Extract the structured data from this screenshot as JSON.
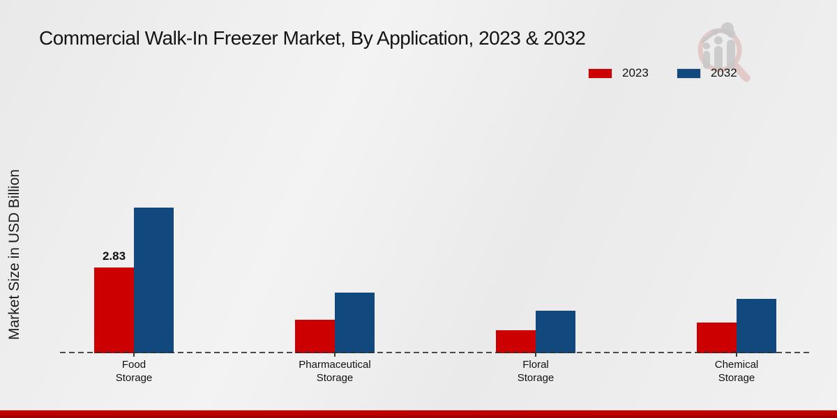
{
  "header": {
    "title": "Commercial Walk-In Freezer Market, By Application, 2023 & 2032"
  },
  "y_axis": {
    "label": "Market Size in USD Billion"
  },
  "legend": {
    "position": "top-right"
  },
  "watermark": {
    "icon": "market-research-magnifier-logo"
  },
  "footer": {
    "band_color": "#b80000"
  },
  "chart_data": {
    "type": "bar",
    "title": "Commercial Walk-In Freezer Market, By Application, 2023 & 2032",
    "xlabel": "",
    "ylabel": "Market Size in USD Billion",
    "categories": [
      "Food Storage",
      "Pharmaceutical Storage",
      "Floral Storage",
      "Chemical Storage"
    ],
    "series": [
      {
        "name": "2023",
        "color": "#cc0000",
        "values": [
          2.83,
          1.1,
          0.75,
          1.0
        ]
      },
      {
        "name": "2032",
        "color": "#11497e",
        "values": [
          4.8,
          2.0,
          1.4,
          1.8
        ]
      }
    ],
    "annotations": [
      {
        "series_index": 0,
        "category_index": 0,
        "text": "2.83"
      }
    ],
    "ylim": [
      0,
      5.5
    ],
    "grid": false,
    "legend_position": "top-right",
    "baseline_style": "dashed"
  }
}
